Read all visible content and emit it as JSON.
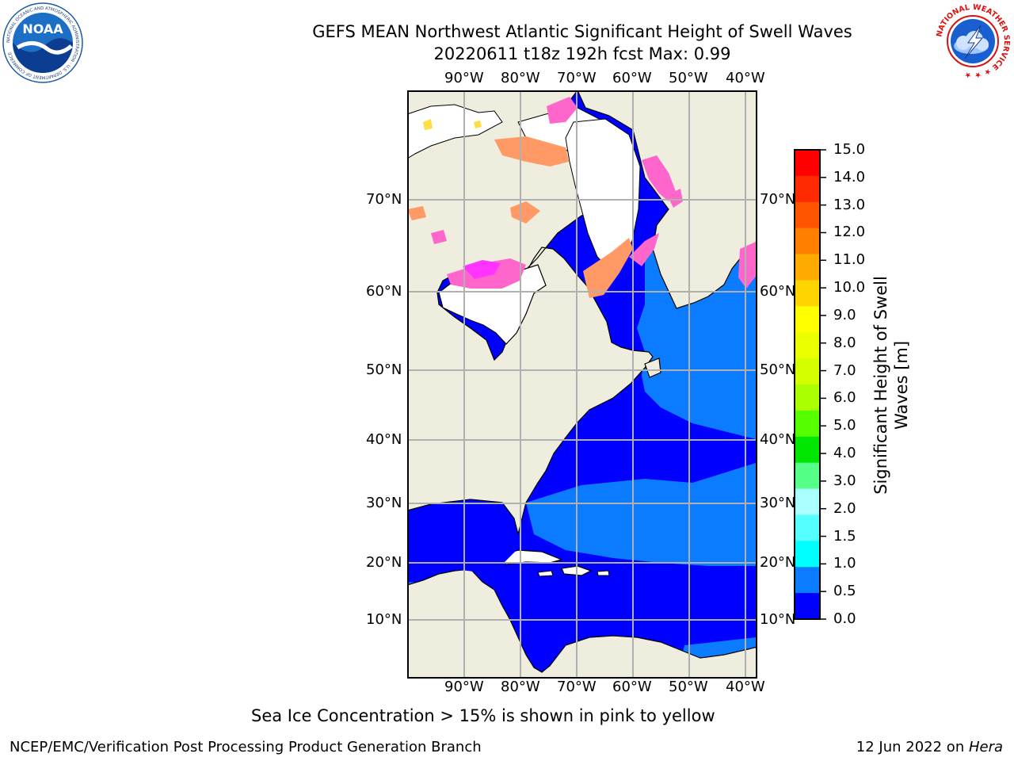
{
  "header": {
    "title_line1": "GEFS MEAN Northwest Atlantic Significant Height of Swell Waves",
    "title_line2": "20220611 t18z 192h fcst   Max: 0.99"
  },
  "logos": {
    "left": {
      "name": "NOAA",
      "text": "NOAA",
      "ring_text": "NATIONAL OCEANIC AND ATMOSPHERIC ADMINISTRATION · U.S. DEPARTMENT OF COMMERCE"
    },
    "right": {
      "name": "National Weather Service",
      "ring_text": "NATIONAL WEATHER SERVICE"
    }
  },
  "map": {
    "longitude_ticks": [
      "90°W",
      "80°W",
      "70°W",
      "60°W",
      "50°W",
      "40°W"
    ],
    "latitude_ticks": [
      "70°N",
      "60°N",
      "50°N",
      "40°N",
      "30°N",
      "20°N",
      "10°N"
    ],
    "colors": {
      "land": "#efedde",
      "ice_free_land": "#ffffff",
      "ocean_low": "#0000ff",
      "ocean_mid": "#0b7cff",
      "sea_ice_pink": "#ff66cc",
      "sea_ice_magenta": "#ff33ff",
      "sea_ice_orange": "#ff9966",
      "sea_ice_yellow": "#ffdd44",
      "grid": "#b0b0b0"
    }
  },
  "colorbar": {
    "label": "Significant Height of Swell Waves [m]",
    "label_line1": "Significant Height of Swell",
    "label_line2": "Waves [m]",
    "ticks": [
      "15.0",
      "14.0",
      "13.0",
      "12.0",
      "11.0",
      "10.0",
      "9.0",
      "8.0",
      "7.0",
      "6.0",
      "5.0",
      "4.0",
      "3.0",
      "2.0",
      "1.5",
      "1.0",
      "0.5",
      "0.0"
    ],
    "colors": [
      "#ff0000",
      "#ff2a00",
      "#ff5500",
      "#ff8000",
      "#ffaa00",
      "#ffd500",
      "#ffff00",
      "#eaff00",
      "#d4ff00",
      "#aaff00",
      "#55ff00",
      "#00e600",
      "#55ff88",
      "#aaffff",
      "#55ffff",
      "#00ffff",
      "#0b7cff",
      "#0000ff"
    ]
  },
  "notes": {
    "sea_ice": "Sea Ice Concentration > 15% is shown in pink to yellow"
  },
  "footer": {
    "left": "NCEP/EMC/Verification Post Processing Product Generation Branch",
    "date": "12 Jun 2022 on ",
    "host": "Hera"
  }
}
